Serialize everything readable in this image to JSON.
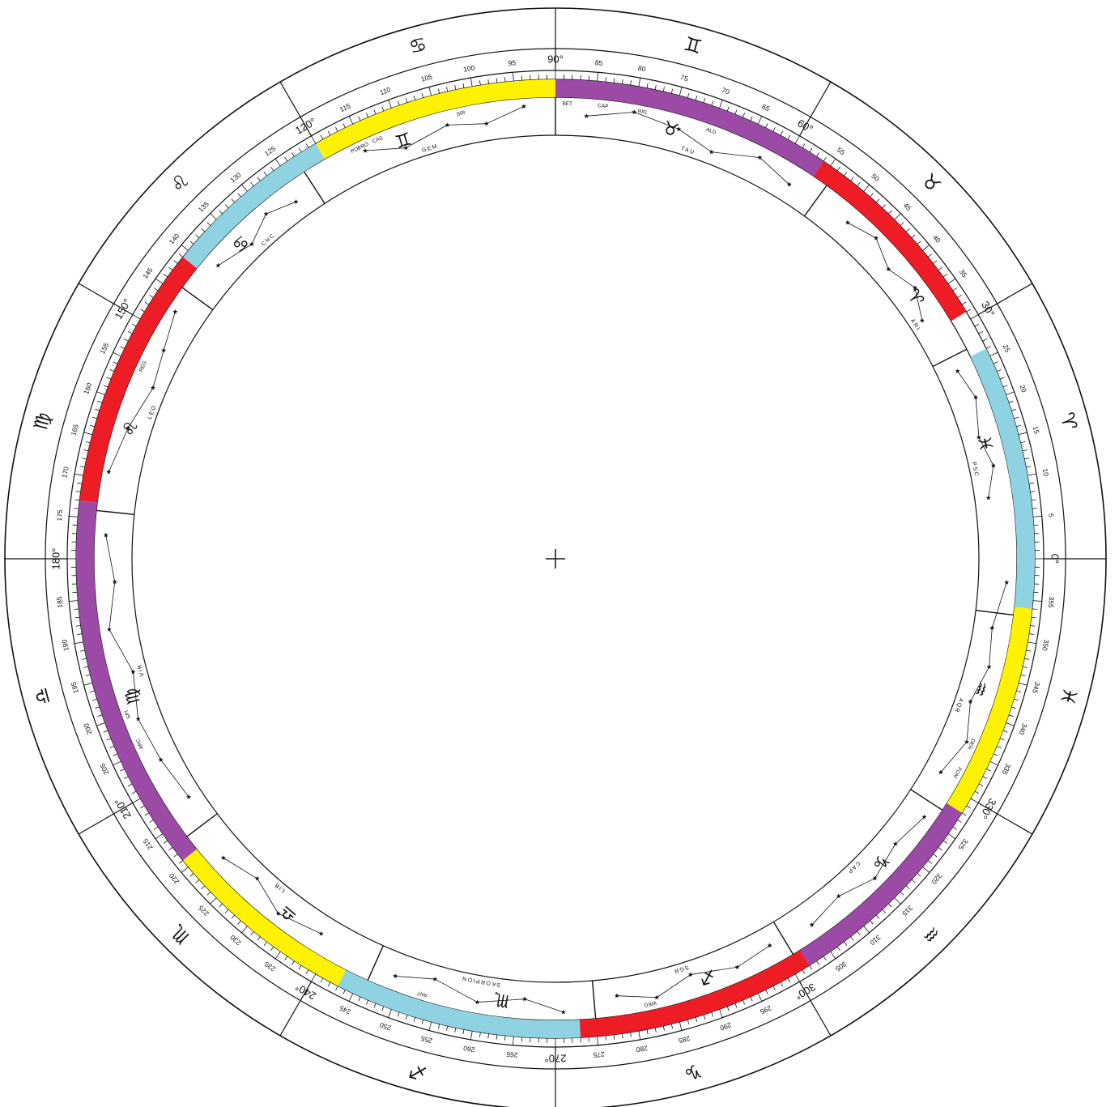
{
  "colors": {
    "purple": "#9b4aa6",
    "red": "#ee1c25",
    "yellow": "#fff200",
    "lightblue": "#8fd3e2",
    "line": "#111111"
  },
  "degree_labels": [
    {
      "deg": 0,
      "text": "0°"
    },
    {
      "deg": 5,
      "text": "5"
    },
    {
      "deg": 10,
      "text": "10"
    },
    {
      "deg": 15,
      "text": "15"
    },
    {
      "deg": 20,
      "text": "20"
    },
    {
      "deg": 25,
      "text": "25"
    },
    {
      "deg": 30,
      "text": "30°"
    },
    {
      "deg": 35,
      "text": "35"
    },
    {
      "deg": 40,
      "text": "40"
    },
    {
      "deg": 45,
      "text": "45"
    },
    {
      "deg": 50,
      "text": "50"
    },
    {
      "deg": 55,
      "text": "55"
    },
    {
      "deg": 60,
      "text": "60°"
    },
    {
      "deg": 65,
      "text": "65"
    },
    {
      "deg": 70,
      "text": "70"
    },
    {
      "deg": 75,
      "text": "75"
    },
    {
      "deg": 80,
      "text": "80"
    },
    {
      "deg": 85,
      "text": "85"
    },
    {
      "deg": 90,
      "text": "90°"
    },
    {
      "deg": 95,
      "text": "95"
    },
    {
      "deg": 100,
      "text": "100"
    },
    {
      "deg": 105,
      "text": "105"
    },
    {
      "deg": 110,
      "text": "110"
    },
    {
      "deg": 115,
      "text": "115"
    },
    {
      "deg": 120,
      "text": "120°"
    },
    {
      "deg": 125,
      "text": "125"
    },
    {
      "deg": 130,
      "text": "130"
    },
    {
      "deg": 135,
      "text": "135"
    },
    {
      "deg": 140,
      "text": "140"
    },
    {
      "deg": 145,
      "text": "145"
    },
    {
      "deg": 150,
      "text": "150°"
    },
    {
      "deg": 155,
      "text": "155"
    },
    {
      "deg": 160,
      "text": "160"
    },
    {
      "deg": 165,
      "text": "165"
    },
    {
      "deg": 170,
      "text": "170"
    },
    {
      "deg": 175,
      "text": "175"
    },
    {
      "deg": 180,
      "text": "180°"
    },
    {
      "deg": 185,
      "text": "185"
    },
    {
      "deg": 190,
      "text": "190"
    },
    {
      "deg": 195,
      "text": "195"
    },
    {
      "deg": 200,
      "text": "200"
    },
    {
      "deg": 205,
      "text": "205"
    },
    {
      "deg": 210,
      "text": "210°"
    },
    {
      "deg": 215,
      "text": "215"
    },
    {
      "deg": 220,
      "text": "220"
    },
    {
      "deg": 225,
      "text": "225"
    },
    {
      "deg": 230,
      "text": "230"
    },
    {
      "deg": 235,
      "text": "235"
    },
    {
      "deg": 240,
      "text": "240°"
    },
    {
      "deg": 245,
      "text": "245"
    },
    {
      "deg": 250,
      "text": "250"
    },
    {
      "deg": 255,
      "text": "255"
    },
    {
      "deg": 260,
      "text": "260"
    },
    {
      "deg": 265,
      "text": "265"
    },
    {
      "deg": 270,
      "text": "270°"
    },
    {
      "deg": 275,
      "text": "275"
    },
    {
      "deg": 280,
      "text": "280"
    },
    {
      "deg": 285,
      "text": "285"
    },
    {
      "deg": 290,
      "text": "290"
    },
    {
      "deg": 295,
      "text": "295"
    },
    {
      "deg": 300,
      "text": "300°"
    },
    {
      "deg": 305,
      "text": "305"
    },
    {
      "deg": 310,
      "text": "310"
    },
    {
      "deg": 315,
      "text": "315"
    },
    {
      "deg": 320,
      "text": "320"
    },
    {
      "deg": 325,
      "text": "325"
    },
    {
      "deg": 330,
      "text": "330°"
    },
    {
      "deg": 335,
      "text": "335"
    },
    {
      "deg": 340,
      "text": "340"
    },
    {
      "deg": 345,
      "text": "345"
    },
    {
      "deg": 350,
      "text": "350"
    },
    {
      "deg": 355,
      "text": "355"
    }
  ],
  "color_band": [
    {
      "from": 354,
      "to": 386,
      "color": "lightblue"
    },
    {
      "from": 31,
      "to": 56,
      "color": "red"
    },
    {
      "from": 56,
      "to": 90,
      "color": "purple"
    },
    {
      "from": 90,
      "to": 120,
      "color": "yellow"
    },
    {
      "from": 120,
      "to": 141,
      "color": "lightblue"
    },
    {
      "from": 141,
      "to": 173,
      "color": "red"
    },
    {
      "from": 173,
      "to": 219,
      "color": "purple"
    },
    {
      "from": 219,
      "to": 243,
      "color": "yellow"
    },
    {
      "from": 243,
      "to": 273,
      "color": "lightblue"
    },
    {
      "from": 273,
      "to": 302,
      "color": "red"
    },
    {
      "from": 302,
      "to": 328,
      "color": "purple"
    },
    {
      "from": 328,
      "to": 354,
      "color": "yellow"
    }
  ],
  "constellation_boundaries": [
    27,
    54,
    90,
    123,
    144,
    174,
    217,
    246,
    275,
    301,
    327,
    353
  ],
  "zodiac_signs": [
    {
      "deg": 15,
      "glyph": "♈"
    },
    {
      "deg": 45,
      "glyph": "♉"
    },
    {
      "deg": 75,
      "glyph": "♊"
    },
    {
      "deg": 105,
      "glyph": "♋"
    },
    {
      "deg": 135,
      "glyph": "♌"
    },
    {
      "deg": 165,
      "glyph": "♍"
    },
    {
      "deg": 195,
      "glyph": "♎"
    },
    {
      "deg": 225,
      "glyph": "♏"
    },
    {
      "deg": 255,
      "glyph": "♐"
    },
    {
      "deg": 285,
      "glyph": "♑"
    },
    {
      "deg": 315,
      "glyph": "♒"
    },
    {
      "deg": 345,
      "glyph": "♓"
    }
  ],
  "constellations": [
    {
      "abbr": "ARI",
      "deg": 33,
      "glyph": "♈"
    },
    {
      "abbr": "TAU",
      "deg": 72,
      "glyph": "♉"
    },
    {
      "abbr": "GEM",
      "deg": 107,
      "glyph": "♊"
    },
    {
      "abbr": "CNC",
      "deg": 132,
      "glyph": "♋"
    },
    {
      "abbr": "LEO",
      "deg": 160,
      "glyph": "♌"
    },
    {
      "abbr": "VIR",
      "deg": 195,
      "glyph": "♍"
    },
    {
      "abbr": "LIB",
      "deg": 230,
      "glyph": "♎"
    },
    {
      "abbr": "SKORPION",
      "deg": 260,
      "glyph": "♏"
    },
    {
      "abbr": "SGR",
      "deg": 287,
      "glyph": "♐"
    },
    {
      "abbr": "CAP",
      "deg": 314,
      "glyph": "♑"
    },
    {
      "abbr": "AQR",
      "deg": 340,
      "glyph": "♒"
    },
    {
      "abbr": "PSC",
      "deg": 12,
      "glyph": "♓"
    }
  ],
  "star_labels": [
    {
      "deg": 88.5,
      "text": "BET"
    },
    {
      "deg": 84,
      "text": "CAP"
    },
    {
      "deg": 79,
      "text": "RIG"
    },
    {
      "deg": 102,
      "text": "SIR"
    },
    {
      "deg": 115,
      "text": "PRO"
    },
    {
      "deg": 113,
      "text": "CAS"
    },
    {
      "deg": 116,
      "text": "POL"
    },
    {
      "deg": 70,
      "text": "ALD"
    },
    {
      "deg": 155,
      "text": "REG"
    },
    {
      "deg": 204,
      "text": "ARC"
    },
    {
      "deg": 200,
      "text": "SPI"
    },
    {
      "deg": 253,
      "text": "ANT"
    },
    {
      "deg": 282,
      "text": "WEG"
    },
    {
      "deg": 336,
      "text": "DEN"
    },
    {
      "deg": 332,
      "text": "FOM"
    }
  ],
  "center_mark": "+"
}
